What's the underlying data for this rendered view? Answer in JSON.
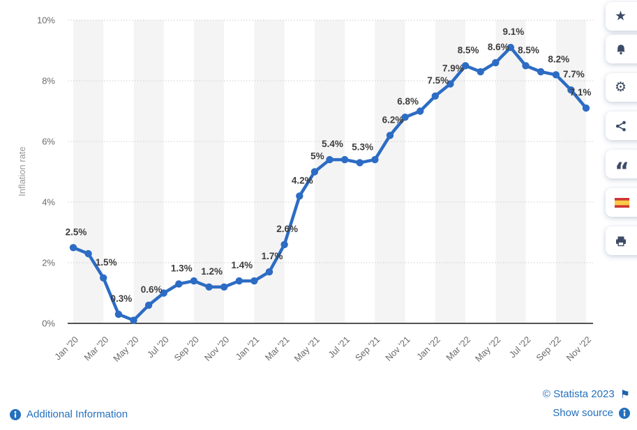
{
  "chart_data": {
    "type": "line",
    "title": "",
    "ylabel": "Inflation rate",
    "x": [
      "Jan '20",
      "Feb '20",
      "Mar '20",
      "Apr '20",
      "May '20",
      "Jun '20",
      "Jul '20",
      "Aug '20",
      "Sep '20",
      "Oct '20",
      "Nov '20",
      "Dec '20",
      "Jan '21",
      "Feb '21",
      "Mar '21",
      "Apr '21",
      "May '21",
      "Jun '21",
      "Jul '21",
      "Aug '21",
      "Sep '21",
      "Oct '21",
      "Nov '21",
      "Dec '21",
      "Jan '22",
      "Feb '22",
      "Mar '22",
      "Apr '22",
      "May '22",
      "Jun '22",
      "Jul '22",
      "Aug '22",
      "Sep '22",
      "Oct '22",
      "Nov '22"
    ],
    "values": [
      2.5,
      2.3,
      1.5,
      0.3,
      0.1,
      0.6,
      1.0,
      1.3,
      1.4,
      1.2,
      1.2,
      1.4,
      1.4,
      1.7,
      2.6,
      4.2,
      5.0,
      5.4,
      5.4,
      5.3,
      5.4,
      6.2,
      6.8,
      7.0,
      7.5,
      7.9,
      8.5,
      8.3,
      8.6,
      9.1,
      8.5,
      8.3,
      8.2,
      7.7,
      7.1
    ],
    "point_labels": [
      "2.5%",
      null,
      "1.5%",
      "0.3%",
      null,
      "0.6%",
      null,
      "1.3%",
      null,
      "1.2%",
      null,
      "1.4%",
      null,
      "1.7%",
      "2.6%",
      "4.2%",
      "5%",
      "5.4%",
      null,
      "5.3%",
      null,
      "6.2%",
      "6.8%",
      null,
      "7.5%",
      "7.9%",
      "8.5%",
      null,
      "8.6%",
      "9.1%",
      "8.5%",
      null,
      "8.2%",
      "7.7%",
      "7.1%"
    ],
    "x_tick_labels": [
      "Jan '20",
      "Mar '20",
      "May '20",
      "Jul '20",
      "Sep '20",
      "Nov '20",
      "Jan '21",
      "Mar '21",
      "May '21",
      "Jul '21",
      "Sep '21",
      "Nov '21",
      "Jan '22",
      "Mar '22",
      "May '22",
      "Jul '22",
      "Sep '22",
      "Nov '22"
    ],
    "x_tick_every": 2,
    "ylim": [
      0,
      10
    ],
    "yticks": [
      0,
      2,
      4,
      6,
      8,
      10
    ],
    "ytick_labels": [
      "0%",
      "2%",
      "4%",
      "6%",
      "8%",
      "10%"
    ],
    "grid": "dotted-horizontal",
    "legend": "none",
    "colors": {
      "line": "#2c6cc4",
      "stripe": "#f4f4f4",
      "grid": "#cccccc",
      "axis": "#1a1a1a",
      "tick_text": "#6b6b6b",
      "value_label": "#3d3d3d",
      "axis_title": "#999999"
    }
  },
  "toolbar": {
    "items": [
      {
        "name": "favorite",
        "icon": "star-icon",
        "glyph": "★"
      },
      {
        "name": "alerts",
        "icon": "bell-icon"
      },
      {
        "name": "settings",
        "icon": "gear-icon",
        "glyph": "⚙"
      },
      {
        "name": "share",
        "icon": "share-icon"
      },
      {
        "name": "cite",
        "icon": "quote-icon",
        "glyph": "“"
      },
      {
        "name": "language-spanish",
        "icon": "spain-flag-icon"
      },
      {
        "name": "print",
        "icon": "printer-icon"
      }
    ]
  },
  "footer": {
    "additional_information": "Additional Information",
    "copyright": "© Statista 2023",
    "show_source": "Show source",
    "flag_glyph": "⚑",
    "link_color": "#2470bd"
  }
}
